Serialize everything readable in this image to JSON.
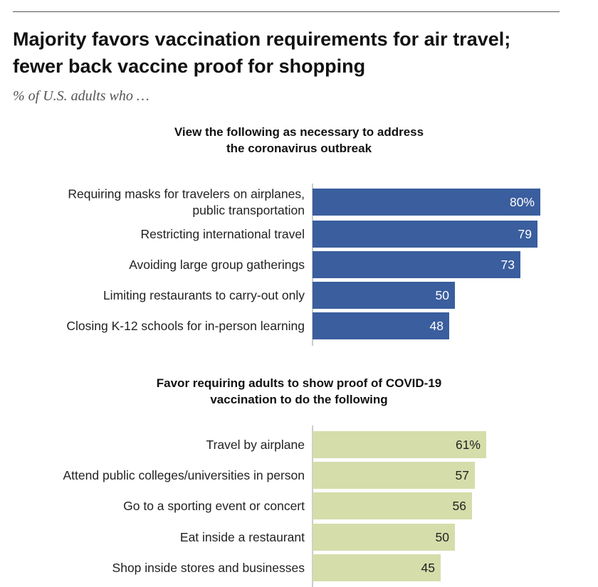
{
  "header": {
    "title_line1": "Majority favors vaccination requirements for air travel;",
    "title_line2": "fewer back vaccine proof for shopping",
    "subtitle": "% of U.S. adults who …"
  },
  "colors": {
    "blue_bar": "#3a5e9e",
    "green_bar": "#d5ddaa",
    "blue_value_text": "#ffffff",
    "green_value_text": "#222222"
  },
  "chart_data": [
    {
      "type": "bar",
      "orientation": "horizontal",
      "title_lines": [
        "View the following as necessary to address",
        "the coronavirus outbreak"
      ],
      "categories": [
        [
          "Requiring masks for travelers on airplanes,",
          "public transportation"
        ],
        [
          "Restricting international travel"
        ],
        [
          "Avoiding large group gatherings"
        ],
        [
          "Limiting restaurants to carry-out only"
        ],
        [
          "Closing K-12 schools for in-person learning"
        ]
      ],
      "values": [
        80,
        79,
        73,
        50,
        48
      ],
      "value_labels": [
        "80%",
        "79",
        "73",
        "50",
        "48"
      ],
      "xlim": [
        0,
        100
      ],
      "color": "#3a5e9e"
    },
    {
      "type": "bar",
      "orientation": "horizontal",
      "title_lines": [
        "Favor requiring adults to show proof of COVID-19",
        "vaccination to do the following"
      ],
      "categories": [
        [
          "Travel by airplane"
        ],
        [
          "Attend public colleges/universities in person"
        ],
        [
          "Go to a sporting event or concert"
        ],
        [
          "Eat inside a restaurant"
        ],
        [
          "Shop inside stores and businesses"
        ]
      ],
      "values": [
        61,
        57,
        56,
        50,
        45
      ],
      "value_labels": [
        "61%",
        "57",
        "56",
        "50",
        "45"
      ],
      "xlim": [
        0,
        100
      ],
      "color": "#d5ddaa"
    }
  ]
}
